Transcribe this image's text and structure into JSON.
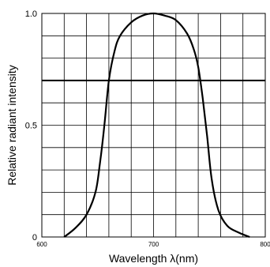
{
  "chart_data": {
    "type": "line",
    "xlabel": "Wavelength λ(nm)",
    "ylabel": "Relative radiant intensity",
    "xlim": [
      600,
      800
    ],
    "ylim": [
      0,
      1.0
    ],
    "x_ticks": [
      600,
      700,
      800
    ],
    "x_tick_labels": [
      "600",
      "700",
      "800"
    ],
    "y_ticks": [
      0,
      0.5,
      1.0
    ],
    "y_tick_labels": [
      "0",
      "0.5",
      "1.0"
    ],
    "grid": true,
    "legend": "none",
    "line_color": "#000000",
    "series": [
      {
        "x": [
          620,
          630,
          640,
          648,
          652,
          656,
          660,
          665,
          670,
          680,
          690,
          700,
          710,
          720,
          730,
          736,
          740,
          744,
          748,
          752,
          758,
          766,
          776,
          786
        ],
        "y": [
          0.0,
          0.04,
          0.1,
          0.2,
          0.33,
          0.5,
          0.7,
          0.83,
          0.9,
          0.96,
          0.99,
          1.0,
          0.99,
          0.97,
          0.91,
          0.84,
          0.76,
          0.62,
          0.45,
          0.26,
          0.12,
          0.05,
          0.02,
          0.0
        ]
      }
    ],
    "reference_lines": [
      {
        "orientation": "horizontal",
        "y": 0.7
      }
    ]
  }
}
